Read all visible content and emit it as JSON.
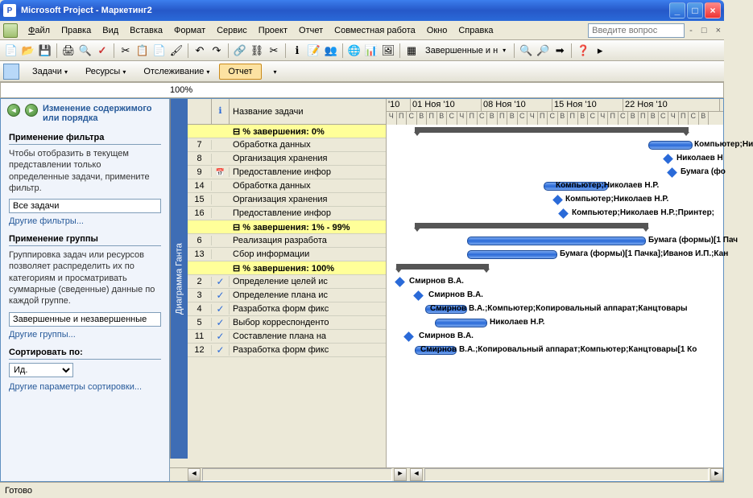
{
  "window": {
    "app": "Microsoft Project",
    "doc": "Маркетинг2"
  },
  "menu": [
    "Файл",
    "Правка",
    "Вид",
    "Вставка",
    "Формат",
    "Сервис",
    "Проект",
    "Отчет",
    "Совместная работа",
    "Окно",
    "Справка"
  ],
  "ask_placeholder": "Введите вопрос",
  "filter_label": "Завершенные и н",
  "viewbar": {
    "tasks": "Задачи",
    "resources": "Ресурсы",
    "tracking": "Отслеживание",
    "report": "Отчет"
  },
  "zoom": "100%",
  "side": {
    "title": "Изменение содержимого или порядка",
    "filter": {
      "h": "Применение фильтра",
      "t": "Чтобы отобразить в текущем представлении только определенные задачи, примените фильтр.",
      "v": "Все задачи",
      "l": "Другие фильтры..."
    },
    "group": {
      "h": "Применение группы",
      "t": "Группировка задач или ресурсов позволяет распределить их по категориям и просматривать суммарные (сведенные) данные по каждой группе.",
      "v": "Завершенные и незавершенные",
      "l": "Другие группы..."
    },
    "sort": {
      "h": "Сортировать по:",
      "v": "Ид.",
      "l": "Другие параметры сортировки..."
    }
  },
  "cols": {
    "indicator": "",
    "name": "Название задачи"
  },
  "vtab": "Диаграмма Ганта",
  "weeks": [
    "'10",
    "01 Ноя '10",
    "08 Ноя '10",
    "15 Ноя '10",
    "22 Ноя '10"
  ],
  "days": [
    "Ч",
    "П",
    "С",
    "В",
    "П",
    "В",
    "С",
    "Ч",
    "П",
    "С",
    "В",
    "П",
    "В",
    "С",
    "Ч",
    "П",
    "С",
    "В",
    "П",
    "В",
    "С",
    "Ч",
    "П",
    "С",
    "В",
    "П",
    "В",
    "С",
    "Ч",
    "П",
    "С",
    "В"
  ],
  "rows": [
    {
      "id": "",
      "name": "% завершения: 0%",
      "group": true,
      "ind": "",
      "barX": 35,
      "barW": 340,
      "sum": true
    },
    {
      "id": "7",
      "name": "Обработка данных",
      "barX": 325,
      "barW": 55,
      "lbl": "Компьютер;Ни",
      "lblX": 382
    },
    {
      "id": "8",
      "name": "Организация хранения",
      "barX": 345,
      "diam": true,
      "lbl": "Николаев Н",
      "lblX": 360
    },
    {
      "id": "9",
      "name": "Предоставление инфор",
      "ind": "ical",
      "barX": 350,
      "diam": true,
      "lbl": "Бумага (фо",
      "lblX": 365
    },
    {
      "id": "14",
      "name": "Обработка данных",
      "barX": 195,
      "barW": 80,
      "lbl": "Компьютер;Николаев Н.Р.",
      "lblX": 210
    },
    {
      "id": "15",
      "name": "Организация хранения",
      "barX": 208,
      "diam": true,
      "lbl": "Компьютер;Николаев Н.Р.",
      "lblX": 222
    },
    {
      "id": "16",
      "name": "Предоставление инфор",
      "barX": 215,
      "diam": true,
      "lbl": "Компьютер;Николаев Н.Р.;Принтер;",
      "lblX": 230
    },
    {
      "id": "",
      "name": "% завершения: 1% - 99%",
      "group": true,
      "barX": 35,
      "barW": 290,
      "sum": true
    },
    {
      "id": "6",
      "name": "Реализация разработа",
      "barX": 100,
      "barW": 222,
      "lbl": "Бумага (формы)[1 Пач",
      "lblX": 325
    },
    {
      "id": "13",
      "name": "Сбор информации",
      "barX": 100,
      "barW": 112,
      "lbl": "Бумага (формы)[1 Пачка];Иванов И.П.;Кан",
      "lblX": 215
    },
    {
      "id": "",
      "name": "% завершения: 100%",
      "group": true,
      "barX": 12,
      "barW": 115,
      "sum": true
    },
    {
      "id": "2",
      "name": "Определение целей ис",
      "ind": "check",
      "barX": 12,
      "diam": true,
      "lbl": "Смирнов В.А.",
      "lblX": 28
    },
    {
      "id": "3",
      "name": "Определение плана ис",
      "ind": "check",
      "barX": 35,
      "diam": true,
      "lbl": "Смирнов В.А.",
      "lblX": 52
    },
    {
      "id": "4",
      "name": "Разработка форм фикс",
      "ind": "check",
      "barX": 48,
      "barW": 52,
      "lbl": "Смирнов В.А.;Компьютер;Копировальный аппарат;Канцтовары",
      "lblX": 54
    },
    {
      "id": "5",
      "name": "Выбор корреспонденто",
      "ind": "check",
      "barX": 60,
      "barW": 65,
      "lbl": "Николаев Н.Р.",
      "lblX": 128
    },
    {
      "id": "11",
      "name": "Составление плана на",
      "ind": "check",
      "barX": 23,
      "diam": true,
      "lbl": "Смирнов В.А.",
      "lblX": 40
    },
    {
      "id": "12",
      "name": "Разработка форм фикс",
      "ind": "check",
      "barX": 35,
      "barW": 52,
      "lbl": "Смирнов В.А.;Копировальный аппарат;Компьютер;Канцтовары[1 Ко",
      "lblX": 42
    }
  ],
  "status": "Готово",
  "colors": {
    "accent": "#2a6ad8",
    "highlight": "#fce2a2",
    "groupbg": "#ffff99",
    "head": "#ece9d8"
  }
}
